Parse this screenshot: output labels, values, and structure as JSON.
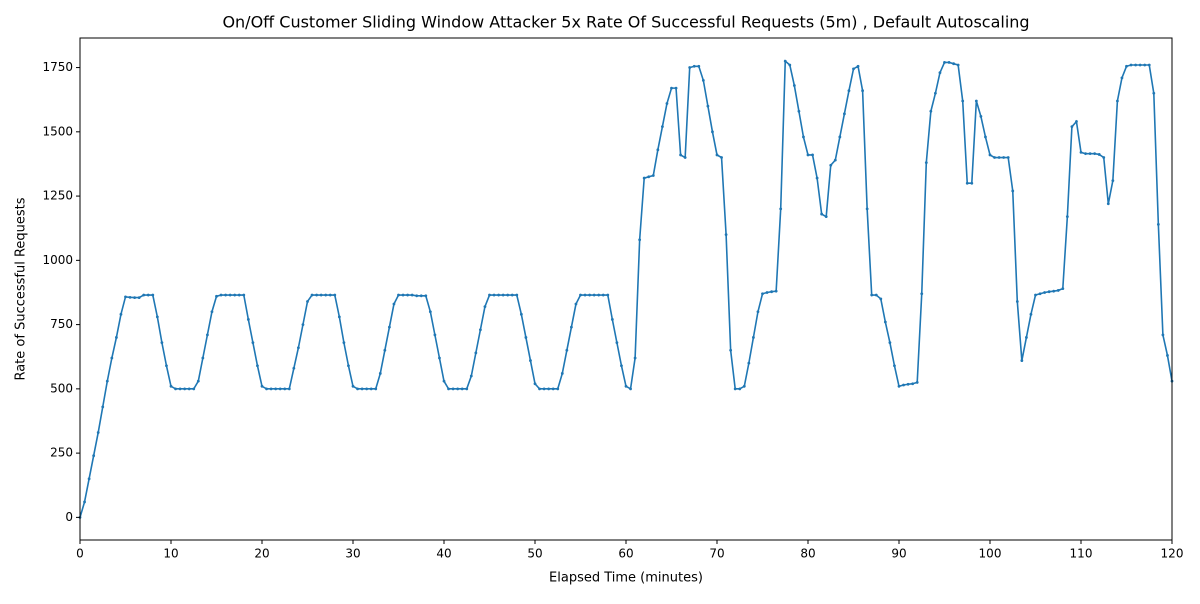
{
  "chart_data": {
    "type": "line",
    "title": "On/Off Customer Sliding Window Attacker 5x Rate Of Successful Requests (5m) , Default Autoscaling",
    "xlabel": "Elapsed Time (minutes)",
    "ylabel": "Rate of Successful Requests",
    "xlim": [
      0,
      120
    ],
    "ylim": [
      -88,
      1865
    ],
    "xticks": [
      0,
      10,
      20,
      30,
      40,
      50,
      60,
      70,
      80,
      90,
      100,
      110,
      120
    ],
    "yticks": [
      0,
      250,
      500,
      750,
      1000,
      1250,
      1500,
      1750
    ],
    "x": [
      0,
      0.5,
      1,
      1.5,
      2,
      2.5,
      3,
      3.5,
      4,
      4.5,
      5,
      5.5,
      6,
      6.5,
      7,
      7.5,
      8,
      8.5,
      9,
      9.5,
      10,
      10.5,
      11,
      11.5,
      12,
      12.5,
      13,
      13.5,
      14,
      14.5,
      15,
      15.5,
      16,
      16.5,
      17,
      17.5,
      18,
      18.5,
      19,
      19.5,
      20,
      20.5,
      21,
      21.5,
      22,
      22.5,
      23,
      23.5,
      24,
      24.5,
      25,
      25.5,
      26,
      26.5,
      27,
      27.5,
      28,
      28.5,
      29,
      29.5,
      30,
      30.5,
      31,
      31.5,
      32,
      32.5,
      33,
      33.5,
      34,
      34.5,
      35,
      35.5,
      36,
      36.5,
      37,
      37.5,
      38,
      38.5,
      39,
      39.5,
      40,
      40.5,
      41,
      41.5,
      42,
      42.5,
      43,
      43.5,
      44,
      44.5,
      45,
      45.5,
      46,
      46.5,
      47,
      47.5,
      48,
      48.5,
      49,
      49.5,
      50,
      50.5,
      51,
      51.5,
      52,
      52.5,
      53,
      53.5,
      54,
      54.5,
      55,
      55.5,
      56,
      56.5,
      57,
      57.5,
      58,
      58.5,
      59,
      59.5,
      60,
      60.5,
      61,
      61.5,
      62,
      62.5,
      63,
      63.5,
      64,
      64.5,
      65,
      65.5,
      66,
      66.5,
      67,
      67.5,
      68,
      68.5,
      69,
      69.5,
      70,
      70.5,
      71,
      71.5,
      72,
      72.5,
      73,
      73.5,
      74,
      74.5,
      75,
      75.5,
      76,
      76.5,
      77,
      77.5,
      78,
      78.5,
      79,
      79.5,
      80,
      80.5,
      81,
      81.5,
      82,
      82.5,
      83,
      83.5,
      84,
      84.5,
      85,
      85.5,
      86,
      86.5,
      87,
      87.5,
      88,
      88.5,
      89,
      89.5,
      90,
      90.5,
      91,
      91.5,
      92,
      92.5,
      93,
      93.5,
      94,
      94.5,
      95,
      95.5,
      96,
      96.5,
      97,
      97.5,
      98,
      98.5,
      99,
      99.5,
      100,
      100.5,
      101,
      101.5,
      102,
      102.5,
      103,
      103.5,
      104,
      104.5,
      105,
      105.5,
      106,
      106.5,
      107,
      107.5,
      108,
      108.5,
      109,
      109.5,
      110,
      110.5,
      111,
      111.5,
      112,
      112.5,
      113,
      113.5,
      114,
      114.5,
      115,
      115.5,
      116,
      116.5,
      117,
      117.5,
      118,
      118.5,
      119,
      119.5,
      120
    ],
    "series": [
      {
        "color": "#1f77b4",
        "values": [
          0,
          60,
          150,
          240,
          330,
          430,
          530,
          620,
          700,
          790,
          858,
          856,
          855,
          855,
          865,
          865,
          865,
          780,
          680,
          590,
          510,
          500,
          500,
          500,
          500,
          500,
          530,
          620,
          710,
          800,
          860,
          865,
          865,
          865,
          865,
          865,
          865,
          770,
          680,
          590,
          510,
          500,
          500,
          500,
          500,
          500,
          500,
          580,
          660,
          750,
          840,
          865,
          865,
          865,
          865,
          865,
          865,
          780,
          680,
          590,
          510,
          500,
          500,
          500,
          500,
          500,
          560,
          650,
          740,
          830,
          865,
          865,
          865,
          865,
          862,
          862,
          862,
          800,
          710,
          620,
          530,
          500,
          500,
          500,
          500,
          500,
          550,
          640,
          730,
          820,
          865,
          865,
          865,
          865,
          865,
          865,
          865,
          790,
          700,
          610,
          520,
          500,
          500,
          500,
          500,
          500,
          560,
          650,
          740,
          830,
          865,
          865,
          865,
          865,
          865,
          865,
          865,
          770,
          680,
          590,
          510,
          500,
          620,
          1080,
          1320,
          1325,
          1330,
          1430,
          1520,
          1610,
          1670,
          1670,
          1410,
          1400,
          1750,
          1755,
          1755,
          1700,
          1600,
          1500,
          1410,
          1400,
          1100,
          650,
          500,
          500,
          510,
          600,
          700,
          800,
          870,
          875,
          878,
          880,
          1200,
          1775,
          1760,
          1680,
          1580,
          1480,
          1410,
          1410,
          1320,
          1180,
          1170,
          1370,
          1390,
          1480,
          1570,
          1660,
          1745,
          1755,
          1660,
          1200,
          865,
          865,
          850,
          760,
          680,
          590,
          510,
          515,
          518,
          520,
          525,
          870,
          1380,
          1580,
          1650,
          1730,
          1770,
          1770,
          1765,
          1760,
          1620,
          1300,
          1300,
          1620,
          1560,
          1480,
          1410,
          1400,
          1400,
          1400,
          1400,
          1270,
          840,
          610,
          700,
          790,
          865,
          870,
          875,
          878,
          880,
          883,
          890,
          1170,
          1520,
          1540,
          1420,
          1415,
          1415,
          1415,
          1412,
          1400,
          1220,
          1310,
          1620,
          1710,
          1755,
          1760,
          1760,
          1760,
          1760,
          1760,
          1650,
          1140,
          710,
          630,
          530
        ]
      }
    ]
  }
}
